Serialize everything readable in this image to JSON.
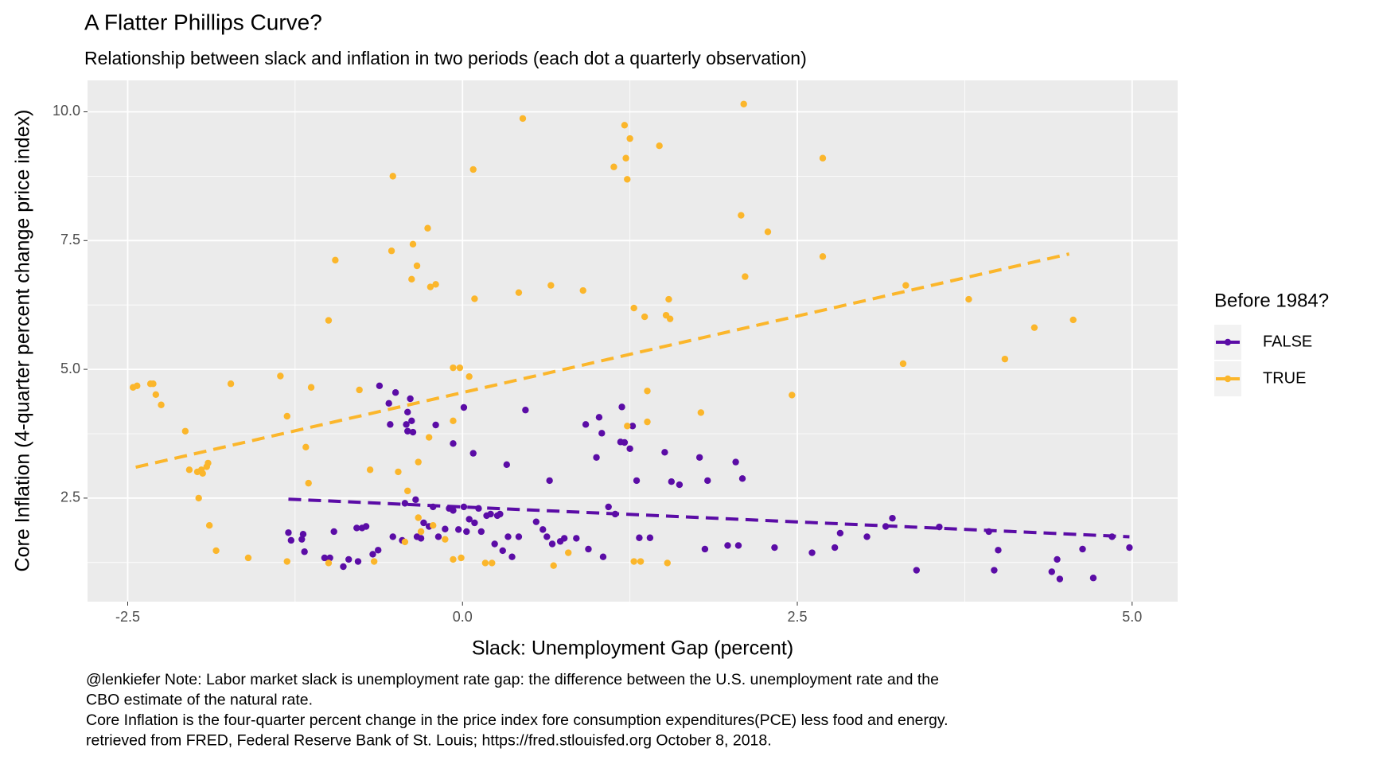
{
  "chart_data": {
    "type": "scatter",
    "title": "A Flatter Phillips Curve?",
    "subtitle": "Relationship between slack and inflation in two periods (each dot a quarterly observation)",
    "x_label": "Slack: Unemployment Gap (percent)",
    "y_label": "Core Inflation (4-quarter percent change price index)",
    "caption": [
      "@lenkiefer Note: Labor market slack is unemployment rate gap: the difference between the U.S. unemployment rate and the",
      "CBO estimate of the natural rate.",
      "Core Inflation is the four-quarter percent change in the price index fore consumption expenditures(PCE) less food and energy.",
      "retrieved from FRED, Federal Reserve Bank of St. Louis; https://fred.stlouisfed.org October 8, 2018."
    ],
    "legend_title": "Before 1984?",
    "legend_position": "right",
    "grid": true,
    "xlim": [
      -2.8,
      5.34
    ],
    "ylim": [
      0.49,
      10.61
    ],
    "xticks": [
      -2.5,
      {
        "value": 0,
        "label": "0.0"
      },
      2.5,
      {
        "value": 5,
        "label": "5.0"
      }
    ],
    "yticks": [
      2.5,
      {
        "value": 5,
        "label": "5.0"
      },
      7.5,
      {
        "value": 10,
        "label": "10.0"
      }
    ],
    "series": [
      {
        "name": "FALSE",
        "color": "#5b0ca6",
        "x": [
          -1.3,
          -1.28,
          -1.19,
          -1.2,
          -1.18,
          -1.03,
          -1.0,
          -0.99,
          -0.96,
          -0.89,
          -0.85,
          -0.79,
          -0.78,
          -0.75,
          -0.72,
          -0.67,
          -0.63,
          -0.62,
          -0.55,
          -0.54,
          -0.5,
          -0.52,
          -0.45,
          -0.43,
          -0.42,
          -0.41,
          -0.41,
          -0.39,
          -0.38,
          -0.37,
          -0.35,
          -0.34,
          -0.31,
          -0.29,
          -0.25,
          -0.22,
          -0.2,
          -0.18,
          -0.13,
          -0.1,
          -0.07,
          -0.07,
          -0.03,
          0.01,
          0.01,
          0.03,
          0.05,
          0.08,
          0.09,
          0.12,
          0.14,
          0.18,
          0.21,
          0.24,
          0.26,
          0.28,
          0.3,
          0.33,
          0.34,
          0.37,
          0.42,
          0.47,
          0.55,
          0.6,
          0.63,
          0.65,
          0.67,
          0.73,
          0.76,
          0.85,
          0.92,
          0.94,
          1.0,
          1.02,
          1.04,
          1.05,
          1.09,
          1.14,
          1.18,
          1.19,
          1.21,
          1.25,
          1.27,
          1.3,
          1.32,
          1.4,
          1.51,
          1.56,
          1.62,
          1.77,
          1.81,
          1.83,
          1.98,
          2.04,
          2.06,
          2.09,
          2.33,
          2.61,
          2.78,
          2.82,
          3.02,
          3.16,
          3.21,
          3.39,
          3.56,
          3.93,
          3.97,
          4.0,
          4.4,
          4.44,
          4.46,
          4.63,
          4.71,
          4.85,
          4.98
        ],
        "y": [
          1.83,
          1.68,
          1.8,
          1.7,
          1.46,
          1.34,
          1.32,
          1.34,
          1.85,
          1.17,
          1.31,
          1.92,
          1.27,
          1.92,
          1.95,
          1.41,
          1.49,
          4.68,
          4.34,
          3.93,
          4.55,
          1.75,
          1.68,
          2.4,
          3.93,
          3.8,
          4.17,
          4.43,
          4.0,
          3.78,
          2.47,
          1.75,
          1.72,
          2.02,
          1.95,
          2.33,
          3.92,
          1.75,
          1.9,
          2.3,
          3.56,
          2.26,
          1.89,
          4.26,
          2.33,
          1.85,
          2.09,
          3.37,
          2.02,
          2.3,
          1.85,
          2.16,
          2.19,
          1.61,
          2.16,
          2.19,
          1.48,
          3.15,
          1.75,
          1.36,
          1.75,
          4.21,
          2.04,
          1.89,
          1.75,
          2.84,
          1.61,
          1.66,
          1.72,
          1.72,
          3.93,
          1.51,
          3.29,
          4.07,
          3.76,
          1.36,
          2.33,
          2.19,
          3.59,
          4.27,
          3.58,
          3.46,
          3.9,
          2.84,
          1.73,
          1.73,
          3.39,
          2.82,
          2.76,
          3.29,
          1.51,
          2.84,
          1.58,
          3.2,
          1.58,
          2.88,
          1.54,
          1.44,
          1.54,
          1.82,
          1.75,
          1.95,
          2.11,
          1.1,
          1.94,
          1.85,
          1.1,
          1.49,
          1.07,
          1.31,
          0.93,
          1.51,
          0.95,
          1.75,
          1.54
        ],
        "trend": {
          "x": [
            -1.3,
            4.98
          ],
          "y": [
            2.48,
            1.75
          ]
        }
      },
      {
        "name": "TRUE",
        "color": "#fbb62b",
        "x": [
          -2.46,
          -2.43,
          -2.33,
          -2.31,
          -2.29,
          -2.25,
          -2.07,
          -2.04,
          -1.98,
          -1.95,
          -1.94,
          -1.9,
          -1.91,
          -1.97,
          -1.89,
          -1.84,
          -1.73,
          -1.6,
          -1.36,
          -1.31,
          -1.31,
          -1.17,
          -1.15,
          -1.13,
          -1.0,
          -1.0,
          -0.95,
          -0.77,
          -0.69,
          -0.66,
          -0.52,
          -0.53,
          -0.48,
          -0.43,
          -0.41,
          -0.38,
          -0.37,
          -0.34,
          -0.33,
          -0.33,
          -0.31,
          -0.26,
          -0.25,
          -0.24,
          -0.22,
          -0.2,
          -0.13,
          -0.07,
          -0.07,
          -0.07,
          -0.02,
          -0.01,
          0.05,
          0.08,
          0.09,
          0.17,
          0.22,
          0.42,
          0.45,
          0.66,
          0.68,
          0.79,
          0.9,
          1.13,
          1.21,
          1.22,
          1.23,
          1.25,
          1.23,
          1.28,
          1.28,
          1.33,
          1.36,
          1.38,
          1.38,
          1.47,
          1.52,
          1.53,
          1.54,
          1.55,
          1.78,
          2.08,
          2.1,
          2.11,
          2.28,
          2.46,
          2.69,
          2.69,
          3.29,
          3.31,
          3.78,
          4.05,
          4.27,
          4.56
        ],
        "y": [
          4.65,
          4.68,
          4.72,
          4.72,
          4.51,
          4.31,
          3.8,
          3.05,
          3.01,
          3.05,
          2.98,
          3.18,
          3.11,
          2.5,
          1.97,
          1.48,
          4.72,
          1.34,
          4.87,
          4.09,
          1.27,
          3.49,
          2.79,
          4.65,
          5.95,
          1.24,
          7.12,
          4.6,
          3.05,
          1.27,
          8.75,
          7.3,
          3.01,
          1.65,
          2.64,
          6.75,
          7.43,
          7.01,
          3.2,
          2.12,
          1.85,
          7.74,
          3.68,
          6.6,
          1.97,
          6.65,
          1.7,
          5.03,
          4.0,
          1.31,
          5.03,
          1.34,
          4.86,
          8.88,
          6.37,
          1.24,
          1.24,
          6.49,
          9.87,
          6.63,
          1.19,
          1.44,
          6.53,
          8.93,
          9.74,
          9.1,
          8.69,
          9.48,
          3.9,
          6.19,
          1.27,
          1.27,
          6.02,
          4.58,
          3.98,
          9.34,
          6.05,
          1.24,
          6.36,
          5.98,
          4.16,
          7.99,
          10.15,
          6.8,
          7.67,
          4.5,
          9.1,
          7.19,
          5.11,
          6.63,
          6.36,
          5.2,
          5.81,
          5.96
        ],
        "trend": {
          "x": [
            -2.44,
            4.53
          ],
          "y": [
            3.1,
            7.24
          ]
        }
      }
    ]
  }
}
